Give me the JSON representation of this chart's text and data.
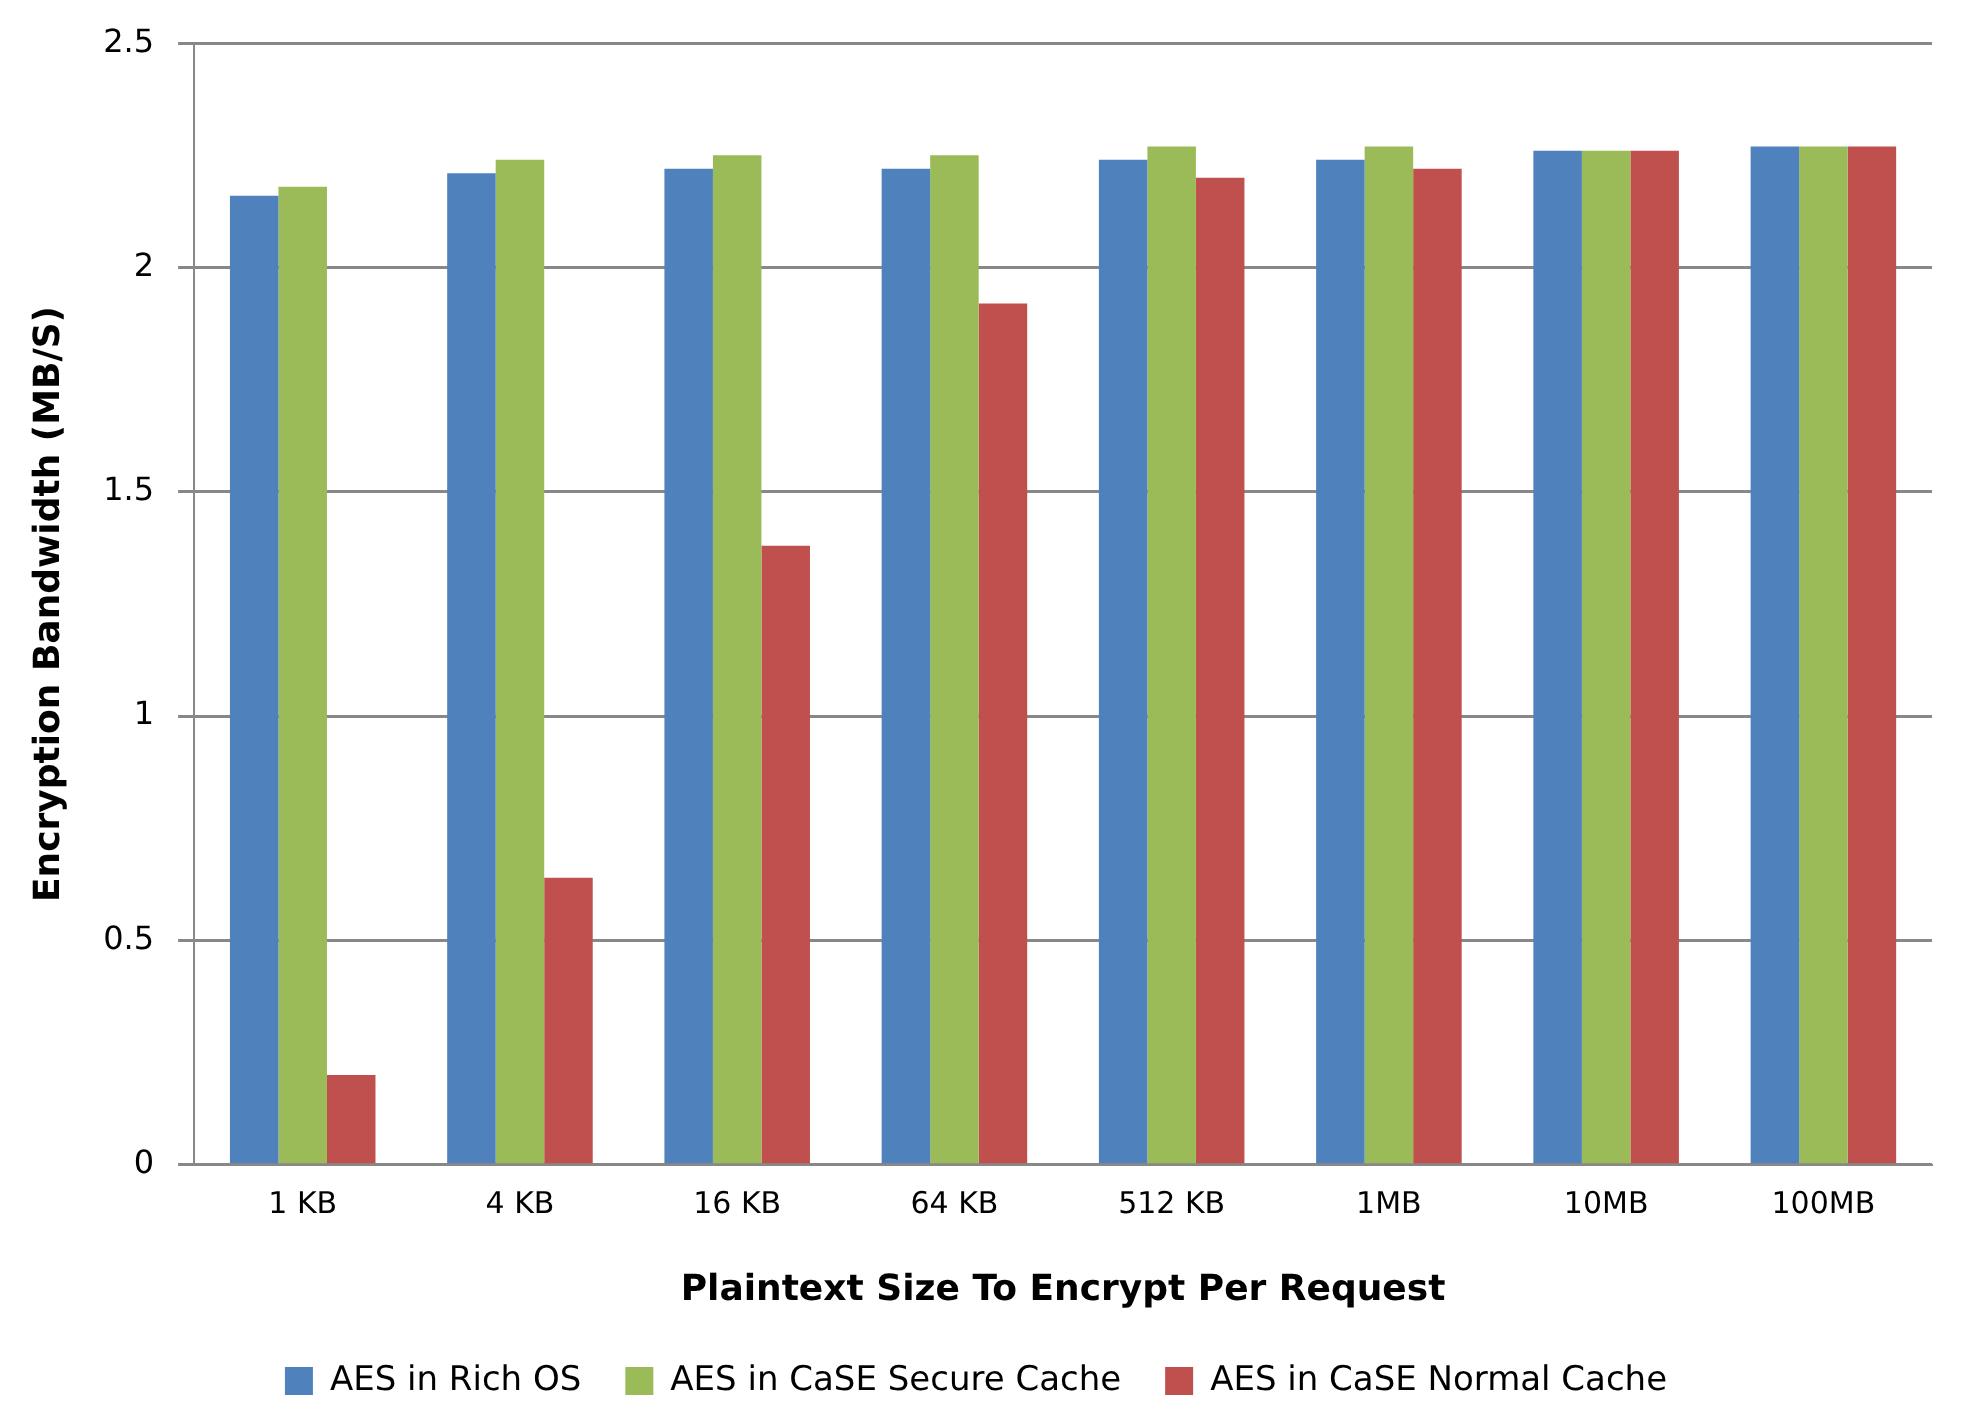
{
  "chart_data": {
    "type": "bar",
    "xlabel": "Plaintext Size To Encrypt Per Request",
    "ylabel": "Encryption Bandwidth (MB/S)",
    "categories": [
      "1 KB",
      "4 KB",
      "16 KB",
      "64 KB",
      "512 KB",
      "1MB",
      "10MB",
      "100MB"
    ],
    "series": [
      {
        "name": "AES in Rich OS",
        "color": "#4f81bd",
        "values": [
          2.16,
          2.21,
          2.22,
          2.22,
          2.24,
          2.24,
          2.26,
          2.27
        ]
      },
      {
        "name": "AES in CaSE Secure Cache",
        "color": "#9bbb59",
        "values": [
          2.18,
          2.24,
          2.25,
          2.25,
          2.27,
          2.27,
          2.26,
          2.27
        ]
      },
      {
        "name": "AES in CaSE Normal Cache",
        "color": "#c0504d",
        "values": [
          0.2,
          0.64,
          1.38,
          1.92,
          2.2,
          2.22,
          2.26,
          2.27
        ]
      }
    ],
    "ylim": [
      0,
      2.5
    ],
    "yticks": [
      0,
      0.5,
      1,
      1.5,
      2,
      2.5
    ],
    "grid": "y",
    "legend": "bottom"
  }
}
